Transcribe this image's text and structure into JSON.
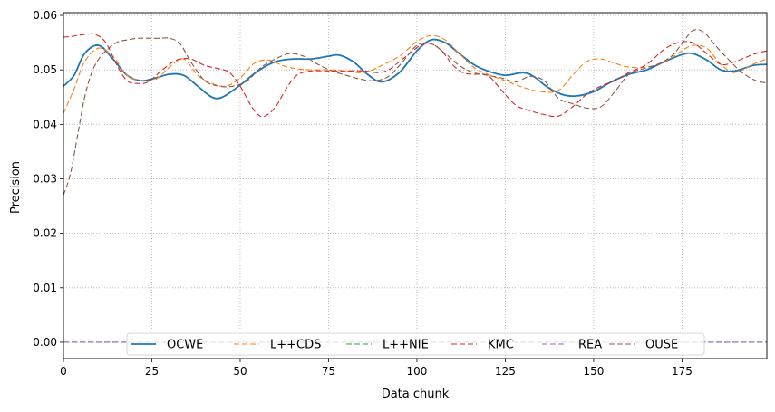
{
  "chart_data": {
    "type": "line",
    "title": "",
    "xlabel": "Data chunk",
    "ylabel": "Precision",
    "xlim": [
      0,
      199
    ],
    "ylim": [
      -0.003,
      0.0605
    ],
    "xticks": [
      0,
      25,
      50,
      75,
      100,
      125,
      150,
      175
    ],
    "xtick_labels": [
      "0",
      "25",
      "50",
      "75",
      "100",
      "125",
      "150",
      "175"
    ],
    "yticks": [
      0.0,
      0.01,
      0.02,
      0.03,
      0.04,
      0.05,
      0.06
    ],
    "ytick_labels": [
      "0.00",
      "0.01",
      "0.02",
      "0.03",
      "0.04",
      "0.05",
      "0.06"
    ],
    "grid": true,
    "legend_position": "bottom-center",
    "series": [
      {
        "name": "OCWE",
        "color": "#1f77b4",
        "dash": "solid",
        "x": [
          0,
          3,
          6,
          10,
          14,
          18,
          22,
          26,
          30,
          34,
          38,
          42,
          45,
          50,
          55,
          60,
          65,
          70,
          75,
          78,
          82,
          86,
          90,
          95,
          100,
          104,
          108,
          112,
          116,
          120,
          125,
          130,
          133,
          137,
          141,
          145,
          150,
          155,
          160,
          165,
          170,
          175,
          178,
          182,
          186,
          190,
          195,
          199
        ],
        "y": [
          0.047,
          0.049,
          0.053,
          0.0545,
          0.052,
          0.049,
          0.048,
          0.0485,
          0.0492,
          0.049,
          0.047,
          0.045,
          0.045,
          0.0472,
          0.0498,
          0.0515,
          0.052,
          0.052,
          0.0525,
          0.0527,
          0.0515,
          0.0492,
          0.0478,
          0.0495,
          0.0535,
          0.0555,
          0.055,
          0.053,
          0.051,
          0.0498,
          0.049,
          0.0495,
          0.0488,
          0.0468,
          0.0455,
          0.0452,
          0.046,
          0.0478,
          0.0492,
          0.05,
          0.0515,
          0.0528,
          0.053,
          0.0518,
          0.05,
          0.0498,
          0.0508,
          0.051
        ]
      },
      {
        "name": "L++CDS",
        "color": "#ff7f0e",
        "dash": "6,3",
        "x": [
          0,
          3,
          6,
          10,
          14,
          18,
          22,
          26,
          30,
          34,
          38,
          42,
          46,
          50,
          54,
          58,
          62,
          66,
          70,
          75,
          80,
          85,
          90,
          95,
          100,
          104,
          108,
          112,
          116,
          120,
          125,
          130,
          135,
          140,
          144,
          148,
          152,
          156,
          160,
          165,
          170,
          175,
          178,
          182,
          186,
          190,
          195,
          199
        ],
        "y": [
          0.042,
          0.0465,
          0.0515,
          0.054,
          0.0525,
          0.049,
          0.048,
          0.0482,
          0.0505,
          0.052,
          0.049,
          0.0475,
          0.047,
          0.0485,
          0.0512,
          0.0518,
          0.0508,
          0.0502,
          0.05,
          0.05,
          0.0498,
          0.0495,
          0.0508,
          0.0525,
          0.0552,
          0.0563,
          0.0555,
          0.053,
          0.0505,
          0.0492,
          0.048,
          0.0468,
          0.046,
          0.0462,
          0.049,
          0.0515,
          0.052,
          0.0512,
          0.0505,
          0.0505,
          0.0515,
          0.0535,
          0.0545,
          0.054,
          0.051,
          0.0495,
          0.051,
          0.052
        ]
      },
      {
        "name": "L++NIE",
        "color": "#2ca02c",
        "dash": "6,3",
        "x": [
          0,
          199
        ],
        "y": [
          0.0,
          0.0
        ]
      },
      {
        "name": "KMC",
        "color": "#d62728",
        "dash": "6,3",
        "x": [
          0,
          3,
          6,
          9,
          12,
          15,
          18,
          21,
          24,
          28,
          32,
          36,
          40,
          44,
          47,
          50,
          53,
          55,
          57,
          60,
          63,
          66,
          70,
          75,
          80,
          85,
          89,
          92,
          95,
          98,
          101,
          104,
          107,
          110,
          113,
          116,
          120,
          124,
          128,
          132,
          136,
          140,
          144,
          148,
          152,
          156,
          160,
          165,
          170,
          174,
          178,
          182,
          186,
          190,
          195,
          199
        ],
        "y": [
          0.056,
          0.0562,
          0.0565,
          0.0565,
          0.055,
          0.051,
          0.048,
          0.0475,
          0.0478,
          0.05,
          0.0518,
          0.052,
          0.0508,
          0.0502,
          0.0495,
          0.047,
          0.0435,
          0.0418,
          0.0415,
          0.0432,
          0.0465,
          0.049,
          0.0498,
          0.0498,
          0.0498,
          0.0498,
          0.0495,
          0.05,
          0.0515,
          0.053,
          0.0545,
          0.0548,
          0.0535,
          0.051,
          0.0495,
          0.0492,
          0.049,
          0.0462,
          0.0435,
          0.0425,
          0.0418,
          0.0415,
          0.0432,
          0.0455,
          0.047,
          0.048,
          0.0495,
          0.051,
          0.0538,
          0.055,
          0.055,
          0.053,
          0.051,
          0.0515,
          0.0528,
          0.0535
        ]
      },
      {
        "name": "REA",
        "color": "#9467bd",
        "dash": "6,3",
        "x": [
          0,
          199
        ],
        "y": [
          0.0,
          0.0
        ]
      },
      {
        "name": "OUSE",
        "color": "#8c564b",
        "dash": "6,3",
        "x": [
          0,
          2,
          4,
          6,
          8,
          10,
          12,
          15,
          18,
          21,
          24,
          27,
          30,
          33,
          36,
          40,
          44,
          48,
          52,
          56,
          60,
          64,
          68,
          72,
          76,
          80,
          84,
          88,
          92,
          96,
          100,
          104,
          108,
          112,
          116,
          120,
          124,
          128,
          132,
          136,
          140,
          144,
          148,
          152,
          156,
          160,
          164,
          168,
          172,
          175,
          178,
          181,
          184,
          188,
          192,
          196,
          199
        ],
        "y": [
          0.027,
          0.031,
          0.038,
          0.045,
          0.0495,
          0.052,
          0.0535,
          0.055,
          0.0555,
          0.0558,
          0.0558,
          0.0558,
          0.0558,
          0.0548,
          0.0515,
          0.048,
          0.047,
          0.047,
          0.048,
          0.0505,
          0.052,
          0.053,
          0.0525,
          0.051,
          0.0498,
          0.049,
          0.0483,
          0.048,
          0.0488,
          0.0515,
          0.0545,
          0.0548,
          0.053,
          0.0508,
          0.0495,
          0.049,
          0.0485,
          0.0478,
          0.0488,
          0.048,
          0.0448,
          0.0438,
          0.043,
          0.0432,
          0.046,
          0.0492,
          0.0502,
          0.051,
          0.0525,
          0.0548,
          0.0572,
          0.057,
          0.0548,
          0.052,
          0.0495,
          0.048,
          0.0476
        ]
      }
    ]
  }
}
